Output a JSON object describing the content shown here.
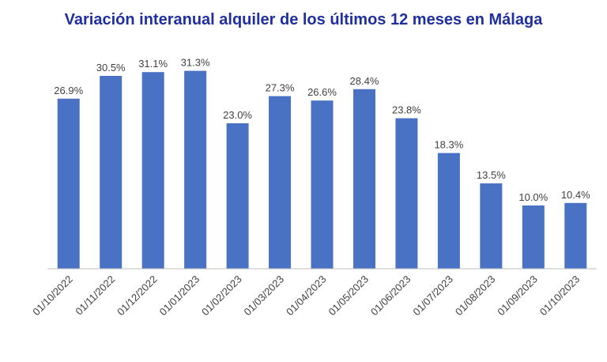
{
  "colors": {
    "bar": "#4a72c4",
    "title": "#1f2fa0",
    "label": "#404040",
    "axis": "#bfbfbf"
  },
  "chart_data": {
    "type": "bar",
    "title": "Variación interanual alquiler de los últimos 12 meses en Málaga",
    "xlabel": "",
    "ylabel": "",
    "ylim": [
      0,
      35
    ],
    "grid": false,
    "legend": "none",
    "categories": [
      "01/10/2022",
      "01/11/2022",
      "01/12/2022",
      "01/01/2023",
      "01/02/2023",
      "01/03/2023",
      "01/04/2023",
      "01/05/2023",
      "01/06/2023",
      "01/07/2023",
      "01/08/2023",
      "01/09/2023",
      "01/10/2023"
    ],
    "values": [
      26.9,
      30.5,
      31.1,
      31.3,
      23.0,
      27.3,
      26.6,
      28.4,
      23.8,
      18.3,
      13.5,
      10.0,
      10.4
    ],
    "value_labels": [
      "26.9%",
      "30.5%",
      "31.1%",
      "31.3%",
      "23.0%",
      "27.3%",
      "26.6%",
      "28.4%",
      "23.8%",
      "18.3%",
      "13.5%",
      "10.0%",
      "10.4%"
    ]
  }
}
